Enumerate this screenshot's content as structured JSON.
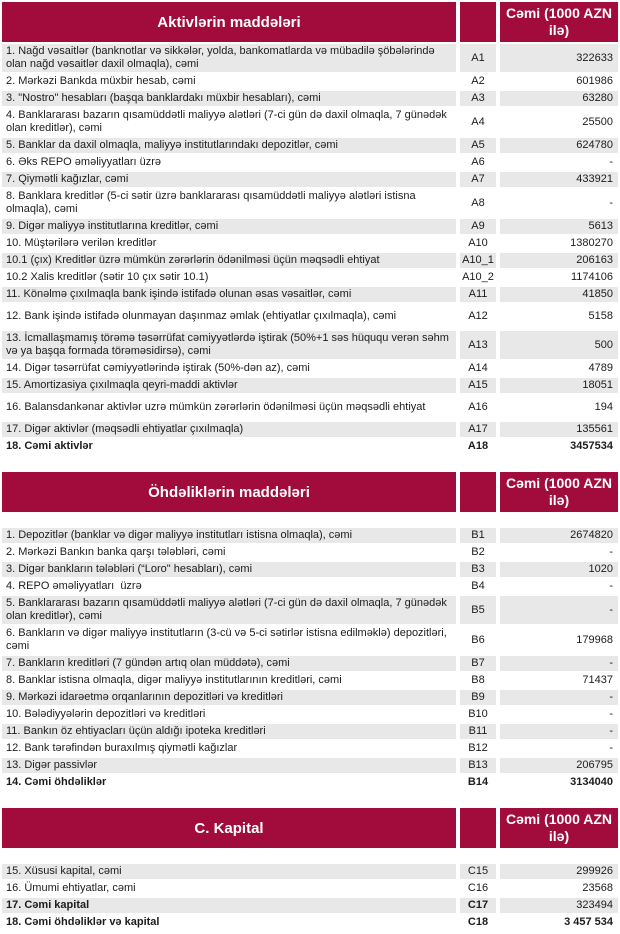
{
  "colors": {
    "header_bg": "#A20C3C",
    "row_stripe": "#E8E8E8",
    "header_text": "#FFFFFF",
    "body_text": "#1C1C1C"
  },
  "value_column_header": "Cəmi (1000 AZN ilə)",
  "sections": [
    {
      "title": "Aktivlərin maddələri",
      "gap_below_header": false,
      "rows": [
        {
          "label": "1. Nağd vəsaitlər (banknotlar və sikkələr, yolda, bankomatlarda və mübadilə şöbələrində olan nağd vəsaitlər daxil olmaqla), cəmi",
          "code": "A1",
          "value": "322633"
        },
        {
          "label": "2. Mərkəzi Bankda müxbir hesab, cəmi",
          "code": "A2",
          "value": "601986"
        },
        {
          "label": "3. \"Nostro\" hesabları (başqa banklardakı müxbir hesabları), cəmi",
          "code": "A3",
          "value": "63280"
        },
        {
          "label": "4. Banklararası bazarın qısamüddətli maliyyə alətləri (7-ci gün də daxil olmaqla, 7 günədək olan kreditlər), cəmi",
          "code": "A4",
          "value": "25500"
        },
        {
          "label": "5. Banklar da daxil olmaqla, maliyyə institutlarındakı depozitlər, cəmi",
          "code": "A5",
          "value": "624780"
        },
        {
          "label": "6. Əks REPO əməliyyatları üzrə",
          "code": "A6",
          "value": "-"
        },
        {
          "label": "7. Qiymətli kağızlar, cəmi",
          "code": "A7",
          "value": "433921"
        },
        {
          "label": "8. Banklara kreditlər (5-ci sətir üzrə banklararası qısamüddətli maliyyə alətləri istisna olmaqla), cəmi",
          "code": "A8",
          "value": "-"
        },
        {
          "label": "9. Digər maliyyə institutlarına kreditlər, cəmi",
          "code": "A9",
          "value": "5613"
        },
        {
          "label": "10. Müştərilərə verilən kreditlər",
          "code": "A10",
          "value": "1380270"
        },
        {
          "label": "10.1 (çıx) Kreditlər üzrə mümkün zərərlərin ödənilməsi üçün məqsədli ehtiyat",
          "code": "A10_1",
          "value": "206163"
        },
        {
          "label": "10.2 Xalis kreditlər (sətir 10 çıx sətir 10.1)",
          "code": "A10_2",
          "value": "1174106"
        },
        {
          "label": "11. Könəlmə çıxılmaqla bank işində istifadə olunan əsas vəsaitlər, cəmi",
          "code": "A11",
          "value": "41850"
        },
        {
          "label": "12. Bank işində istifadə olunmayan daşınmaz əmlak (ehtiyatlar çıxılmaqla), cəmi",
          "code": "A12",
          "value": "5158",
          "tall": true
        },
        {
          "label": "13. İcmallaşmamış törəmə təsərrüfat cəmiyyətlərdə iştirak (50%+1 səs hüququ verən səhm və ya başqa formada törəməsidirsə), cəmi",
          "code": "A13",
          "value": "500"
        },
        {
          "label": "14. Digər təsərrüfat cəmiyyətlərində iştirak (50%-dən az), cəmi",
          "code": "A14",
          "value": "4789"
        },
        {
          "label": "15. Amortizasiya çıxılmaqla qeyri-maddi aktivlər",
          "code": "A15",
          "value": "18051"
        },
        {
          "label": "16. Balansdankənar aktivlər uzrə mümkün zərərlərin ödənilməsi üçün məqsədli ehtiyat",
          "code": "A16",
          "value": "194",
          "tall": true
        },
        {
          "label": "17. Digər aktivlər (məqsədli ehtiyatlar çıxılmaqla)",
          "code": "A17",
          "value": "135561"
        },
        {
          "label": "18. Cəmi aktivlər",
          "code": "A18",
          "value": "3457534",
          "bold": true
        }
      ]
    },
    {
      "title": "Öhdəliklərin maddələri",
      "gap_below_header": true,
      "rows": [
        {
          "label": "1. Depozitlər (banklar və digər maliyyə institutları istisna olmaqla), cəmi",
          "code": "B1",
          "value": "2674820"
        },
        {
          "label": "2. Mərkəzi Bankın banka qarşı tələbləri, cəmi",
          "code": "B2",
          "value": "-"
        },
        {
          "label": "3. Digər bankların tələbləri (“Loro\" hesabları), cəmi",
          "code": "B3",
          "value": "1020"
        },
        {
          "label": "4. REPO əməliyyatları  üzrə",
          "code": "B4",
          "value": "-"
        },
        {
          "label": "5. Banklararası bazarın qısamüddətli maliyyə alətləri (7-ci gün də daxil olmaqla, 7 günədək olan kreditlər), cəmi",
          "code": "B5",
          "value": "-"
        },
        {
          "label": "6. Bankların və digər maliyyə institutların (3-cü və 5-ci sətirlər istisna edilməklə) depozitləri, cəmi",
          "code": "B6",
          "value": "179968"
        },
        {
          "label": "7. Bankların kreditləri (7 gündən artıq olan müddətə), cəmi",
          "code": "B7",
          "value": "-"
        },
        {
          "label": "8. Banklar istisna olmaqla, digər maliyyə institutlarının kreditləri, cəmi",
          "code": "B8",
          "value": "71437"
        },
        {
          "label": "9. Mərkəzi idarəetmə orqanlarının depozitləri və kreditləri",
          "code": "B9",
          "value": "-"
        },
        {
          "label": "10. Bələdiyyələrin depozitləri və kreditləri",
          "code": "B10",
          "value": "-"
        },
        {
          "label": "11. Bankın öz ehtiyacları üçün aldığı ipoteka kreditləri",
          "code": "B11",
          "value": "-"
        },
        {
          "label": "12. Bank tərəfindən buraxılmış qiymətli kağızlar",
          "code": "B12",
          "value": "-"
        },
        {
          "label": "13. Digər passivlər",
          "code": "B13",
          "value": "206795"
        },
        {
          "label": "14. Cəmi öhdəliklər",
          "code": "B14",
          "value": "3134040",
          "bold": true
        }
      ]
    },
    {
      "title": "C. Kapital",
      "gap_below_header": true,
      "rows": [
        {
          "label": "15. Xüsusi kapital, cəmi",
          "code": "C15",
          "value": "299926"
        },
        {
          "label": "16. Ümumi ehtiyatlar, cəmi",
          "code": "C16",
          "value": "23568"
        },
        {
          "label": "17. Cəmi kapital",
          "code": "C17",
          "value": "323494",
          "bold": true,
          "value_bold": false
        },
        {
          "label": "18. Cəmi öhdəliklər və kapital",
          "code": "C18",
          "value": "3 457 534",
          "bold": true
        }
      ]
    }
  ]
}
